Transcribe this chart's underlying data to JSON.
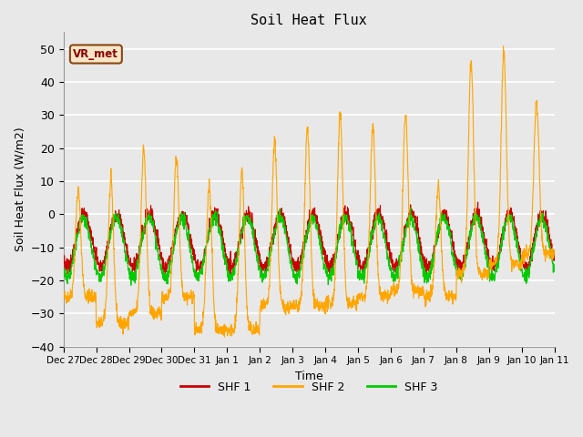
{
  "title": "Soil Heat Flux",
  "xlabel": "Time",
  "ylabel": "Soil Heat Flux (W/m2)",
  "ylim": [
    -40,
    55
  ],
  "yticks": [
    -40,
    -30,
    -20,
    -10,
    0,
    10,
    20,
    30,
    40,
    50
  ],
  "background_color": "#e8e8e8",
  "plot_bg_color": "#e8e8e8",
  "grid_color": "#ffffff",
  "shf1_color": "#cc0000",
  "shf2_color": "#ffa500",
  "shf3_color": "#00cc00",
  "legend_labels": [
    "SHF 1",
    "SHF 2",
    "SHF 3"
  ],
  "annotation_text": "VR_met",
  "tick_labels": [
    "Dec 27",
    "Dec 28",
    "Dec 29",
    "Dec 30",
    "Dec 31",
    "Jan 1",
    "Jan 2",
    "Jan 3",
    "Jan 4",
    "Jan 5",
    "Jan 6",
    "Jan 7",
    "Jan 8",
    "Jan 9",
    "Jan 10",
    "Jan 11"
  ],
  "n_points": 2160,
  "seed": 42,
  "shf2_peak_amps": [
    7,
    10,
    20,
    17,
    9,
    13,
    22,
    26,
    30,
    27,
    30,
    8,
    46,
    49,
    34,
    35
  ],
  "shf2_trough_amps": [
    -25,
    -33,
    -30,
    -25,
    -35,
    -35,
    -28,
    -28,
    -27,
    -25,
    -23,
    -25,
    -18,
    -15,
    -12,
    -12
  ],
  "shf1_amp": [
    8,
    8,
    8,
    8,
    8,
    8,
    8,
    8,
    8,
    8,
    8,
    8,
    8,
    8,
    8,
    8
  ],
  "shf1_baseline": -8,
  "shf3_baseline": -10,
  "shf3_amp": [
    9,
    9,
    9,
    9,
    9,
    9,
    9,
    9,
    9,
    9,
    9,
    9,
    9,
    9,
    9,
    9
  ]
}
